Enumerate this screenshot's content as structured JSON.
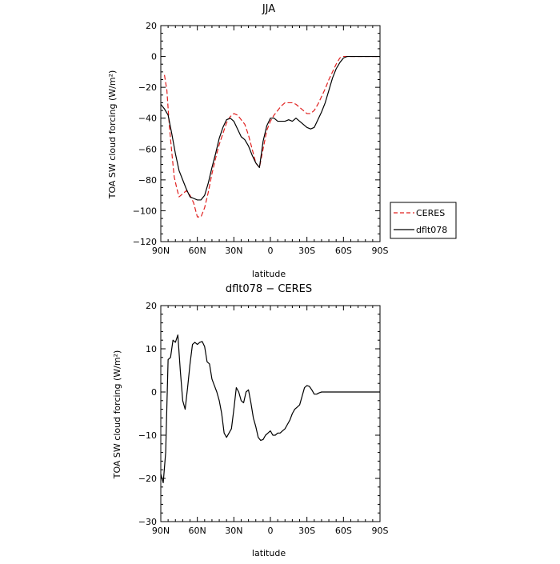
{
  "chart_data": [
    {
      "type": "line",
      "title": "JJA",
      "xlabel": "latitude",
      "ylabel": "TOA SW cloud forcing (W/m²)",
      "xlim": [
        -90,
        90
      ],
      "ylim": [
        -120,
        20
      ],
      "xticks": [
        -90,
        -60,
        -30,
        0,
        30,
        60,
        90
      ],
      "xtick_labels": [
        "90N",
        "60N",
        "30N",
        "0",
        "30S",
        "60S",
        "90S"
      ],
      "yticks": [
        -120,
        -100,
        -80,
        -60,
        -40,
        -20,
        0,
        20
      ],
      "ytick_labels": [
        "−120",
        "−100",
        "−80",
        "−60",
        "−40",
        "−20",
        "0",
        "20"
      ],
      "legend_position": "right",
      "series": [
        {
          "name": "CERES",
          "color": "#e0201f",
          "dash": "dashed",
          "x": [
            -87,
            -85,
            -83,
            -81,
            -79,
            -77,
            -75,
            -72,
            -69,
            -66,
            -63,
            -60,
            -57,
            -54,
            -51,
            -48,
            -45,
            -42,
            -39,
            -36,
            -33,
            -30,
            -27,
            -24,
            -21,
            -18,
            -15,
            -12,
            -9,
            -6,
            -3,
            0,
            3,
            6,
            9,
            12,
            15,
            18,
            21,
            24,
            27,
            30,
            33,
            36,
            39,
            42,
            45,
            48,
            51,
            54,
            57,
            60,
            63,
            66,
            69,
            72,
            75,
            78,
            81,
            84,
            87,
            90
          ],
          "y": [
            -12,
            -22,
            -45,
            -62,
            -78,
            -85,
            -91,
            -89,
            -87,
            -90,
            -95,
            -104,
            -104,
            -98,
            -88,
            -76,
            -66,
            -57,
            -50,
            -43,
            -39,
            -37,
            -38,
            -41,
            -44,
            -51,
            -60,
            -69,
            -72,
            -60,
            -48,
            -42,
            -38,
            -35,
            -32,
            -30,
            -30,
            -30,
            -31,
            -33,
            -35,
            -37,
            -37,
            -35,
            -31,
            -26,
            -21,
            -15,
            -10,
            -5,
            -1,
            0,
            0,
            0,
            0,
            0,
            0,
            0,
            0,
            0,
            0,
            0
          ]
        },
        {
          "name": "dflt078",
          "color": "#000000",
          "dash": "solid",
          "x": [
            -90,
            -87,
            -84,
            -81,
            -78,
            -75,
            -72,
            -69,
            -66,
            -63,
            -60,
            -57,
            -54,
            -51,
            -48,
            -45,
            -42,
            -39,
            -36,
            -33,
            -30,
            -27,
            -24,
            -21,
            -18,
            -15,
            -12,
            -9,
            -6,
            -3,
            0,
            3,
            6,
            9,
            12,
            15,
            18,
            21,
            24,
            27,
            30,
            33,
            36,
            39,
            42,
            45,
            48,
            51,
            54,
            57,
            60,
            63,
            66,
            69,
            72,
            75,
            78,
            81,
            84,
            87,
            90
          ],
          "y": [
            -31,
            -34,
            -38,
            -50,
            -63,
            -74,
            -80,
            -86,
            -91,
            -92,
            -93,
            -93,
            -90,
            -82,
            -72,
            -63,
            -53,
            -46,
            -41,
            -40,
            -42,
            -47,
            -52,
            -54,
            -58,
            -64,
            -69,
            -72,
            -55,
            -45,
            -40,
            -40,
            -42,
            -42,
            -42,
            -41,
            -42,
            -40,
            -42,
            -44,
            -46,
            -47,
            -46,
            -41,
            -36,
            -30,
            -22,
            -14,
            -8,
            -4,
            -1,
            0,
            0,
            0,
            0,
            0,
            0,
            0,
            0,
            0,
            0
          ]
        }
      ]
    },
    {
      "type": "line",
      "title": "dflt078 − CERES",
      "xlabel": "latitude",
      "ylabel": "TOA SW cloud forcing (W/m²)",
      "xlim": [
        -90,
        90
      ],
      "ylim": [
        -30,
        20
      ],
      "xticks": [
        -90,
        -60,
        -30,
        0,
        30,
        60,
        90
      ],
      "xtick_labels": [
        "90N",
        "60N",
        "30N",
        "0",
        "30S",
        "60S",
        "90S"
      ],
      "yticks": [
        -30,
        -20,
        -10,
        0,
        10,
        20
      ],
      "ytick_labels": [
        "−30",
        "−20",
        "−10",
        "0",
        "10",
        "20"
      ],
      "series": [
        {
          "color": "#000000",
          "dash": "solid",
          "x": [
            -90,
            -88,
            -86,
            -84,
            -82,
            -80,
            -78,
            -76,
            -74,
            -72,
            -70,
            -68,
            -66,
            -64,
            -62,
            -60,
            -58,
            -56,
            -54,
            -52,
            -50,
            -48,
            -46,
            -44,
            -42,
            -40,
            -38,
            -36,
            -34,
            -32,
            -30,
            -28,
            -26,
            -24,
            -22,
            -20,
            -18,
            -16,
            -14,
            -12,
            -10,
            -8,
            -6,
            -4,
            -2,
            0,
            2,
            4,
            6,
            8,
            10,
            12,
            14,
            16,
            18,
            20,
            22,
            24,
            26,
            28,
            30,
            32,
            34,
            36,
            38,
            40,
            42,
            44,
            46,
            48,
            50,
            52,
            54,
            56,
            58,
            60,
            62,
            64,
            66,
            68,
            70,
            72,
            75,
            78,
            81,
            84,
            87,
            90
          ],
          "y": [
            -19,
            -21,
            -14,
            7.5,
            8,
            12,
            11.5,
            13.2,
            5,
            -2,
            -4,
            1,
            6.5,
            11,
            11.5,
            11,
            11.5,
            11.7,
            10.5,
            7,
            6.5,
            3,
            1.5,
            0,
            -2,
            -5,
            -9.5,
            -10.5,
            -9.5,
            -8.5,
            -4,
            1,
            0,
            -2,
            -2.5,
            0,
            0.5,
            -2.5,
            -6,
            -8,
            -10.5,
            -11.2,
            -11,
            -10,
            -9.5,
            -9,
            -10,
            -10,
            -9.5,
            -9.5,
            -9,
            -8.5,
            -7.5,
            -6.5,
            -5,
            -4,
            -3.5,
            -3,
            -1,
            1,
            1.5,
            1.3,
            0.5,
            -0.5,
            -0.5,
            -0.2,
            0,
            0,
            0,
            0,
            0,
            0,
            0,
            0,
            0,
            0,
            0,
            0,
            0,
            0,
            0,
            0,
            0,
            0,
            0,
            0,
            0,
            0
          ]
        }
      ]
    }
  ]
}
